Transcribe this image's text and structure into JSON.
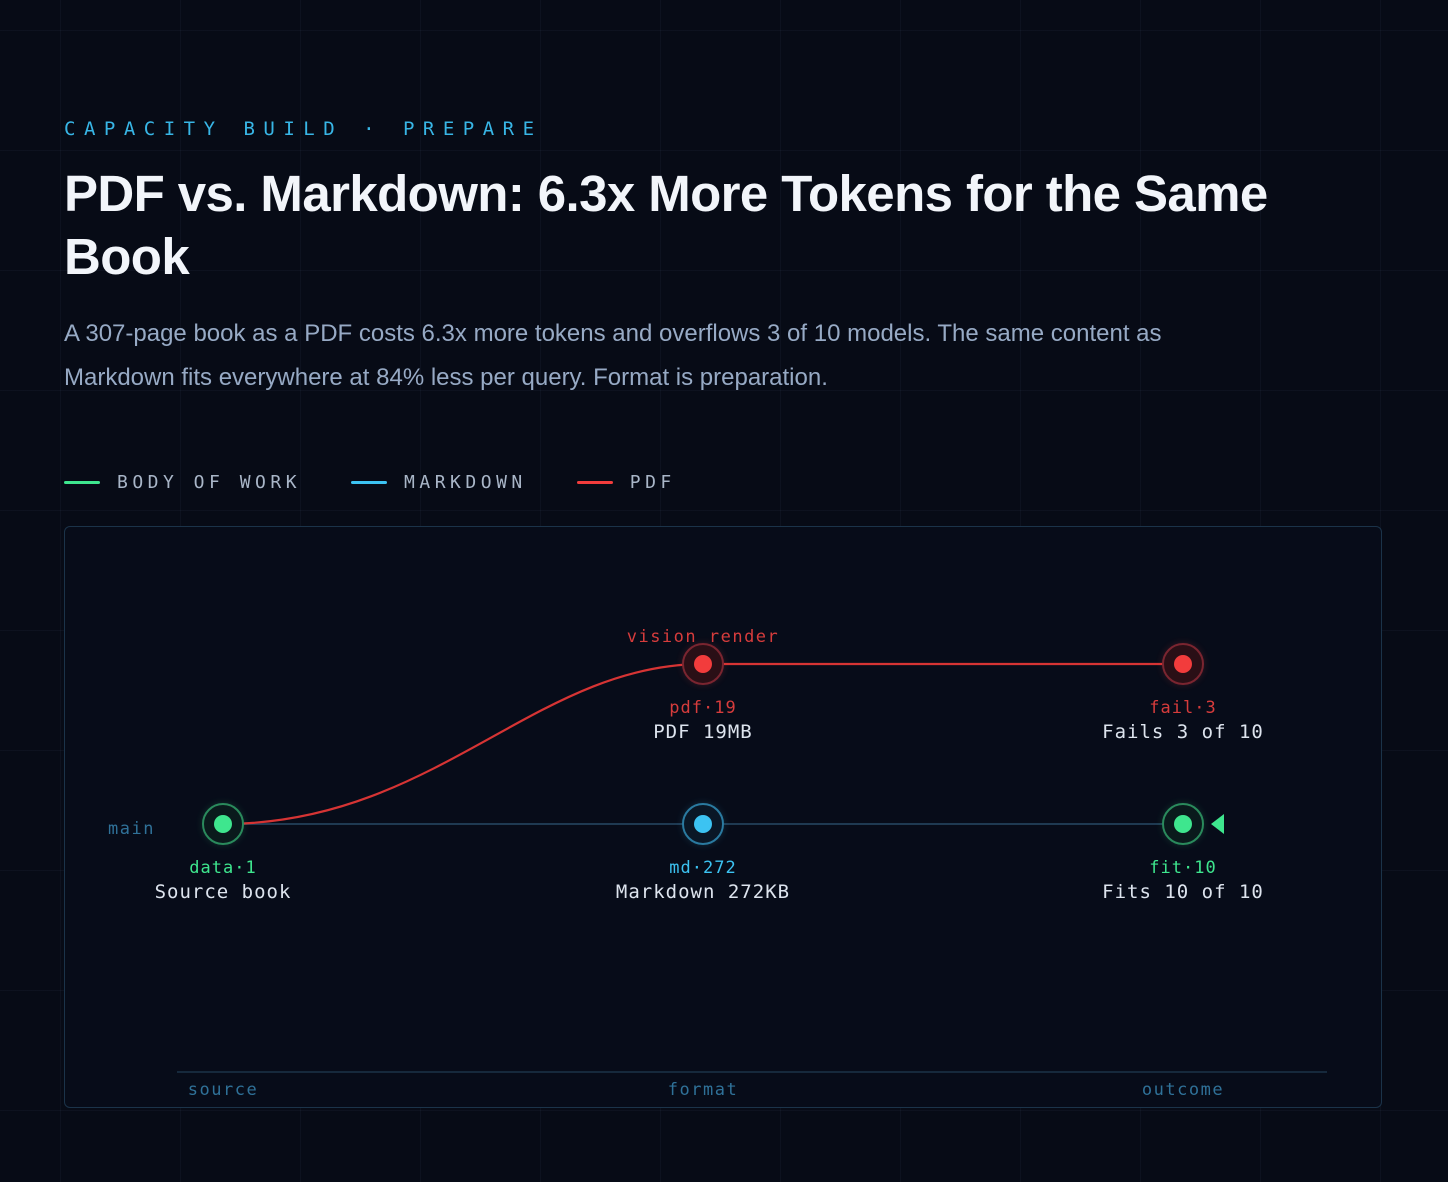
{
  "header": {
    "kicker": "CAPACITY BUILD · PREPARE",
    "title": "PDF vs. Markdown: 6.3x More Tokens for the Same Book",
    "subtitle": "A 307-page book as a PDF costs 6.3x more tokens and overflows 3 of 10 models. The same content as Markdown fits everywhere at 84% less per query. Format is preparation."
  },
  "legend": [
    {
      "label": "BODY OF WORK",
      "color": "#3ee68e"
    },
    {
      "label": "MARKDOWN",
      "color": "#3cc3f2"
    },
    {
      "label": "PDF",
      "color": "#f23c3c"
    }
  ],
  "diagram": {
    "main_label": "main",
    "branch_label": "vision render",
    "columns": [
      "source",
      "format",
      "outcome"
    ],
    "nodes": [
      {
        "id": "data",
        "tag": "data·1",
        "label": "Source book",
        "color": "#3ee68e"
      },
      {
        "id": "md",
        "tag": "md·272",
        "label": "Markdown 272KB",
        "color": "#3cc3f2"
      },
      {
        "id": "fit",
        "tag": "fit·10",
        "label": "Fits 10 of 10",
        "color": "#3ee68e"
      },
      {
        "id": "pdf",
        "tag": "pdf·19",
        "label": "PDF 19MB",
        "color": "#f23c3c"
      },
      {
        "id": "fail",
        "tag": "fail·3",
        "label": "Fails 3 of 10",
        "color": "#f23c3c"
      }
    ],
    "colors": {
      "main_line": "#1f3a52",
      "pdf_line": "#d63434",
      "axis_text": "#2f7198",
      "node_label": "#dde4ee",
      "head_marker": "#3ee68e"
    }
  }
}
